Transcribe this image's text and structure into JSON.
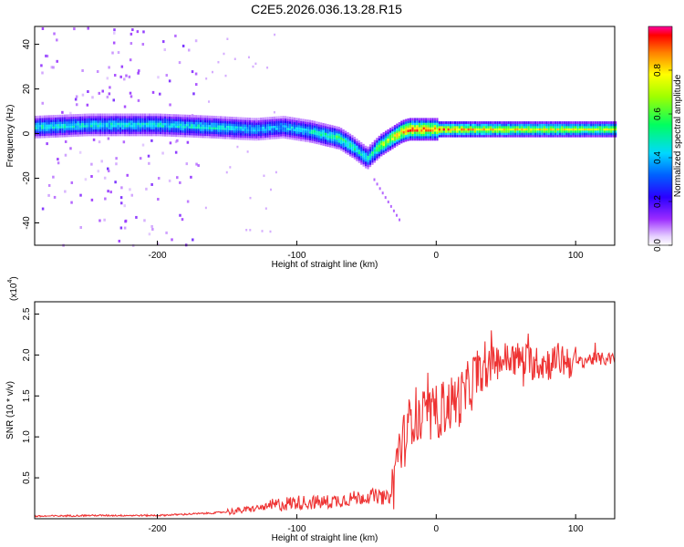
{
  "title": "C2E5.2026.036.13.28.R15",
  "colorbar_label": "Normalized spectral amplitude",
  "colorbar_ticks": [
    "0.0",
    "0.2",
    "0.4",
    "0.6",
    "0.8"
  ],
  "chart_data": [
    {
      "type": "heatmap",
      "xlabel": "Height of straight line (km)",
      "ylabel": "Frequency (Hz)",
      "xlim": [
        -288,
        128
      ],
      "ylim": [
        -50,
        48
      ],
      "xticks": [
        "-200",
        "-100",
        "0",
        "100"
      ],
      "yticks": [
        "40",
        "20",
        "0",
        "-20",
        "-40"
      ],
      "colorbar": {
        "label": "Normalized spectral amplitude",
        "range": [
          0,
          1
        ]
      },
      "ridge": {
        "x": [
          -288,
          -250,
          -200,
          -160,
          -130,
          -110,
          -90,
          -70,
          -60,
          -50,
          -45,
          -40,
          -35,
          -30,
          -25,
          -20,
          -10,
          0,
          50,
          128
        ],
        "frequency": [
          3,
          4,
          4,
          3,
          2,
          3,
          1,
          -2,
          -6,
          -11,
          -8,
          -5,
          -3,
          -1,
          1,
          2,
          2,
          2,
          2,
          2
        ],
        "amplitude": [
          0.5,
          0.5,
          0.5,
          0.5,
          0.45,
          0.45,
          0.5,
          0.6,
          0.55,
          0.5,
          0.6,
          0.7,
          0.75,
          0.8,
          0.85,
          0.95,
          0.9,
          0.85,
          0.75,
          0.7
        ]
      }
    },
    {
      "type": "line",
      "xlabel": "Height of straight line (km)",
      "ylabel": "SNR (10 * v/v)",
      "y_scale_label": "(x10",
      "y_scale_exp": "4",
      "xlim": [
        -288,
        128
      ],
      "ylim": [
        0,
        2.65
      ],
      "xticks": [
        "-200",
        "-100",
        "0",
        "100"
      ],
      "yticks": [
        "0.5",
        "1.0",
        "1.5",
        "2.0",
        "2.5"
      ],
      "color": "#ee3333",
      "series": [
        {
          "x": [
            -288,
            -250,
            -200,
            -160,
            -140,
            -120,
            -110,
            -100,
            -80,
            -60,
            -45,
            -35,
            -32,
            -30,
            -28,
            -25,
            -22,
            -20,
            -18,
            -15,
            -12,
            -10,
            -8,
            -5,
            -2,
            0,
            5,
            10,
            15,
            20,
            25,
            30,
            35,
            40,
            50,
            60,
            70,
            80,
            90,
            100,
            110,
            120,
            128
          ],
          "y": [
            0.03,
            0.04,
            0.04,
            0.07,
            0.1,
            0.15,
            0.18,
            0.2,
            0.2,
            0.25,
            0.28,
            0.25,
            0.3,
            0.5,
            0.8,
            0.9,
            1.0,
            1.1,
            1.25,
            1.3,
            1.15,
            1.2,
            1.3,
            1.25,
            1.25,
            1.3,
            1.35,
            1.4,
            1.45,
            1.5,
            1.65,
            1.8,
            1.75,
            1.9,
            1.95,
            1.95,
            1.9,
            1.9,
            1.95,
            1.9,
            1.95,
            1.95,
            1.95
          ]
        }
      ]
    }
  ]
}
